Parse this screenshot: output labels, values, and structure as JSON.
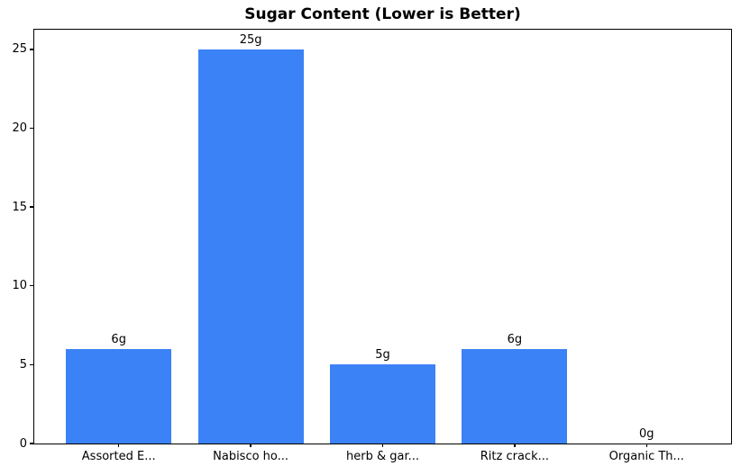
{
  "chart_data": {
    "type": "bar",
    "title": "Sugar Content (Lower is Better)",
    "categories": [
      "Assorted E...",
      "Nabisco ho...",
      "herb & gar...",
      "Ritz crack...",
      "Organic Th..."
    ],
    "values": [
      6,
      25,
      5,
      6,
      0
    ],
    "value_labels": [
      "6g",
      "25g",
      "5g",
      "6g",
      "0g"
    ],
    "xlabel": "",
    "ylabel": "",
    "ylim": [
      0,
      26.25
    ],
    "yticks": [
      0,
      5,
      10,
      15,
      20,
      25
    ],
    "grid": false,
    "legend": "none",
    "colors": {
      "bar": "#3b82f6",
      "text": "#000000",
      "background": "#ffffff",
      "spine": "#000000"
    }
  }
}
